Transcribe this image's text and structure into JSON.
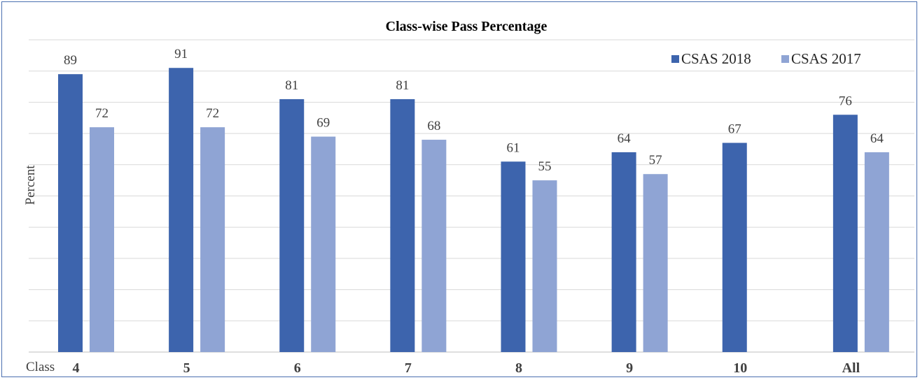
{
  "chart_data": {
    "type": "bar",
    "title": "Class-wise Pass Percentage",
    "xlabel": "Class",
    "ylabel": "Percent",
    "categories": [
      "4",
      "5",
      "6",
      "7",
      "8",
      "9",
      "10",
      "All"
    ],
    "series": [
      {
        "name": "CSAS 2018",
        "values": [
          89,
          91,
          81,
          81,
          61,
          64,
          67,
          76
        ],
        "color": "#3d64ad"
      },
      {
        "name": "CSAS 2017",
        "values": [
          72,
          72,
          69,
          68,
          55,
          57,
          null,
          64
        ],
        "color": "#8fa4d4"
      }
    ],
    "ylim": [
      0,
      100
    ],
    "grid": true,
    "legend_position": "top-right",
    "data_labels": true
  }
}
